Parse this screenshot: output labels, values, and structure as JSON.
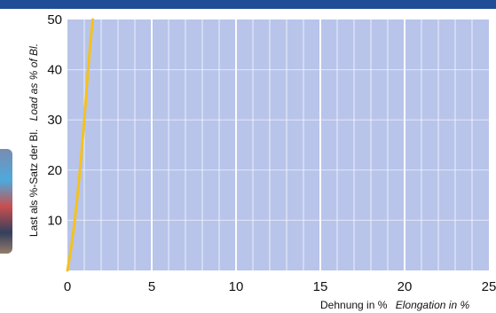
{
  "chart_data": {
    "type": "line",
    "x_ticks": [
      0,
      5,
      10,
      15,
      20,
      25
    ],
    "y_ticks": [
      10,
      20,
      30,
      40,
      50
    ],
    "xlim": [
      0,
      25
    ],
    "ylim": [
      0,
      50
    ],
    "xlabel": "Dehnung in %",
    "xlabel_en": "Elongation in %",
    "ylabel": "Last als %-Satz der Bl.",
    "ylabel_en": "Load as % of Bl.",
    "grid": true,
    "series": [
      {
        "color": "#f5c21b",
        "x": [
          0,
          0.2,
          0.4,
          0.6,
          0.8,
          1.0,
          1.2,
          1.35,
          1.5
        ],
        "y": [
          0,
          4,
          9,
          15,
          22,
          30,
          39,
          45,
          50
        ]
      }
    ],
    "colors": {
      "plot_bg": "#b8c4ea",
      "grid": "#ffffff",
      "header": "#1f4e96"
    }
  }
}
